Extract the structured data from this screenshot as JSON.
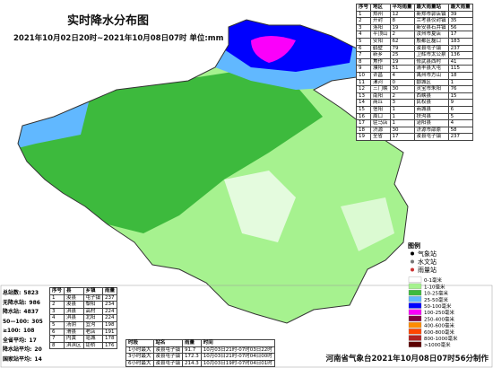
{
  "header": {
    "title": "实时降水分布图",
    "subtitle": "2021年10月02日20时~2021年10月08日07时 单位:mm"
  },
  "region_table": {
    "columns": [
      "序号",
      "地区",
      "平均雨量",
      "最大雨量站",
      "最大雨量"
    ],
    "rows": [
      [
        1,
        "郑州",
        12,
        "新郑市郭店镇",
        39
      ],
      [
        2,
        "开封",
        8,
        "兰考县仪封镇",
        35
      ],
      [
        3,
        "洛阳",
        19,
        "新安县石井镇",
        56
      ],
      [
        4,
        "平顶山",
        2,
        "汝州市夏店",
        17
      ],
      [
        5,
        "安阳",
        62,
        "殷都区磊口",
        183
      ],
      [
        6,
        "鹤壁",
        79,
        "浚县屯子镇",
        237
      ],
      [
        7,
        "新乡",
        25,
        "卫辉市太公泉",
        136
      ],
      [
        8,
        "焦作",
        19,
        "修武县西村",
        41
      ],
      [
        9,
        "濮阳",
        51,
        "清丰县大屯",
        115
      ],
      [
        10,
        "许昌",
        4,
        "禹州市方山",
        18
      ],
      [
        11,
        "漯河",
        0,
        "郾城区",
        1
      ],
      [
        12,
        "三门峡",
        30,
        "灵宝市朱阳",
        76
      ],
      [
        13,
        "南阳",
        2,
        "西峡县",
        15
      ],
      [
        14,
        "商丘",
        3,
        "民权县",
        9
      ],
      [
        15,
        "信阳",
        1,
        "商城县",
        6
      ],
      [
        16,
        "周口",
        1,
        "扶沟县",
        5
      ],
      [
        17,
        "驻马店",
        1,
        "泌阳县",
        4
      ],
      [
        18,
        "济源",
        30,
        "济源市邵原",
        58
      ],
      [
        19,
        "全省",
        17,
        "浚县屯子镇",
        237
      ]
    ]
  },
  "legend": {
    "title": "图例",
    "stations": [
      {
        "label": "气象站",
        "color": "#000000"
      },
      {
        "label": "水文站",
        "color": "#777777"
      },
      {
        "label": "雨量站",
        "color": "#cc3333"
      }
    ],
    "classes": [
      {
        "label": "0-1毫米",
        "color": "#ffffff"
      },
      {
        "label": "1-10毫米",
        "color": "#a6f28f"
      },
      {
        "label": "10-25毫米",
        "color": "#3dba3d"
      },
      {
        "label": "25-50毫米",
        "color": "#61b8ff"
      },
      {
        "label": "50-100毫米",
        "color": "#0000fe"
      },
      {
        "label": "100-250毫米",
        "color": "#fa00fa"
      },
      {
        "label": "250-400毫米",
        "color": "#800040"
      },
      {
        "label": "400-600毫米",
        "color": "#ff8c00"
      },
      {
        "label": "600-800毫米",
        "color": "#ff4500"
      },
      {
        "label": "800-1000毫米",
        "color": "#b22222"
      },
      {
        "label": ">1000毫米",
        "color": "#5c0000"
      }
    ]
  },
  "stats": [
    {
      "label": "总站数:",
      "value": 5823
    },
    {
      "label": "无降水站:",
      "value": 986
    },
    {
      "label": "降水站:",
      "value": 4837
    },
    {
      "label": "50—100:",
      "value": 305
    },
    {
      "label": "≥100:",
      "value": 108
    },
    {
      "label": "全省平均:",
      "value": 17
    },
    {
      "label": "降水站平均:",
      "value": 20
    },
    {
      "label": "国家站平均:",
      "value": 14
    }
  ],
  "station_table": {
    "columns": [
      "序号",
      "县",
      "乡镇",
      "雨量"
    ],
    "rows": [
      [
        1,
        "浚县",
        "屯子镇",
        237
      ],
      [
        2,
        "浚县",
        "黎阳",
        234
      ],
      [
        3,
        "淇县",
        "高村",
        224
      ],
      [
        4,
        "淇县",
        "北阳",
        224
      ],
      [
        5,
        "汤阴",
        "宜沟",
        198
      ],
      [
        6,
        "滑县",
        "老店",
        191
      ],
      [
        7,
        "内黄",
        "亳城",
        178
      ],
      [
        8,
        "淇滨区",
        "钜桥",
        176
      ]
    ]
  },
  "intensity_table": {
    "columns": [
      "时段",
      "站名",
      "雨量",
      "时间"
    ],
    "rows": [
      [
        "1小时最大",
        "浚县屯子镇",
        91.7,
        "10月03日21时-07时03日22时"
      ],
      [
        "3小时最大",
        "浚县屯子镇",
        172.3,
        "10月03日21时-07时04日00时"
      ],
      [
        "6小时最大",
        "浚县屯子镇",
        214.3,
        "10月03日19时-07时04日01时"
      ]
    ]
  },
  "footer": "河南省气象台2021年10月08日07时56分制作"
}
